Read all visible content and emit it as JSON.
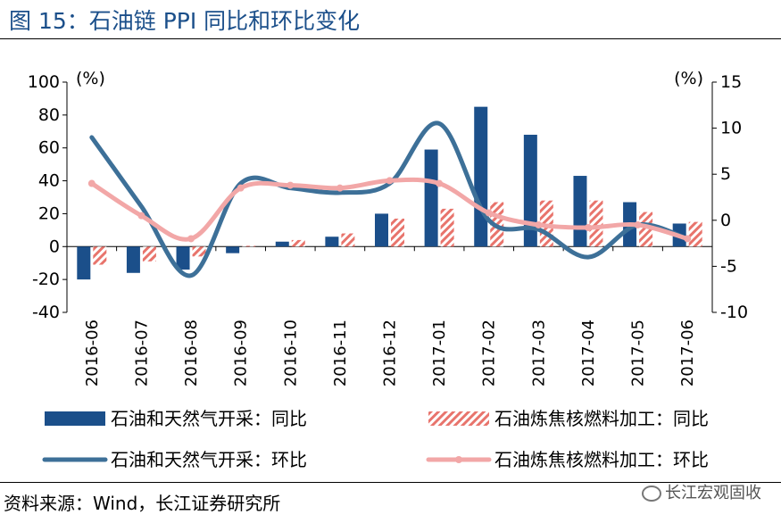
{
  "figure_title": "图 15：石油链 PPI 同比和环比变化",
  "source_text": "资料来源：Wind，长江证券研究所",
  "brand_text": "长江宏观固收",
  "colors": {
    "bar_oil_gas": "#1b4f8a",
    "bar_refining": "#e8746c",
    "line_oil_gas": "#3d7098",
    "line_refining": "#f2a7a7",
    "title": "#1b4f8a"
  },
  "chart_data": {
    "type": "bar",
    "categories": [
      "2016-06",
      "2016-07",
      "2016-08",
      "2016-09",
      "2016-10",
      "2016-11",
      "2016-12",
      "2017-01",
      "2017-02",
      "2017-03",
      "2017-04",
      "2017-05",
      "2017-06"
    ],
    "left_axis": {
      "unit": "(%)",
      "ylim": [
        -40,
        100
      ],
      "ticks": [
        -40,
        -20,
        0,
        20,
        40,
        60,
        80,
        100
      ]
    },
    "right_axis": {
      "unit": "(%)",
      "ylim": [
        -10,
        15
      ],
      "ticks": [
        -10,
        -5,
        0,
        5,
        10,
        15
      ]
    },
    "grid": false,
    "legend_position": "bottom",
    "series": [
      {
        "name": "石油和天然气开采：同比",
        "kind": "bar",
        "axis": "left",
        "values": [
          -20,
          -16,
          -14,
          -4,
          3,
          6,
          20,
          59,
          85,
          68,
          43,
          27,
          14
        ]
      },
      {
        "name": "石油炼焦核燃料加工：同比",
        "kind": "bar",
        "axis": "left",
        "pattern": "hatched",
        "values": [
          -11,
          -9,
          -6,
          0.5,
          4,
          8,
          17,
          23,
          27,
          28,
          28,
          21,
          15
        ]
      },
      {
        "name": "石油和天然气开采：环比",
        "kind": "line",
        "axis": "right",
        "values": [
          9,
          1.5,
          -6,
          4,
          3.5,
          3,
          4,
          10.5,
          0,
          -1,
          -4,
          -0.5,
          -2
        ]
      },
      {
        "name": "石油炼焦核燃料加工：环比",
        "kind": "line",
        "axis": "right",
        "values": [
          4,
          0.5,
          -2,
          3.5,
          3.8,
          3.5,
          4.3,
          4,
          0.8,
          -0.5,
          -0.8,
          -0.5,
          -2
        ]
      }
    ]
  }
}
